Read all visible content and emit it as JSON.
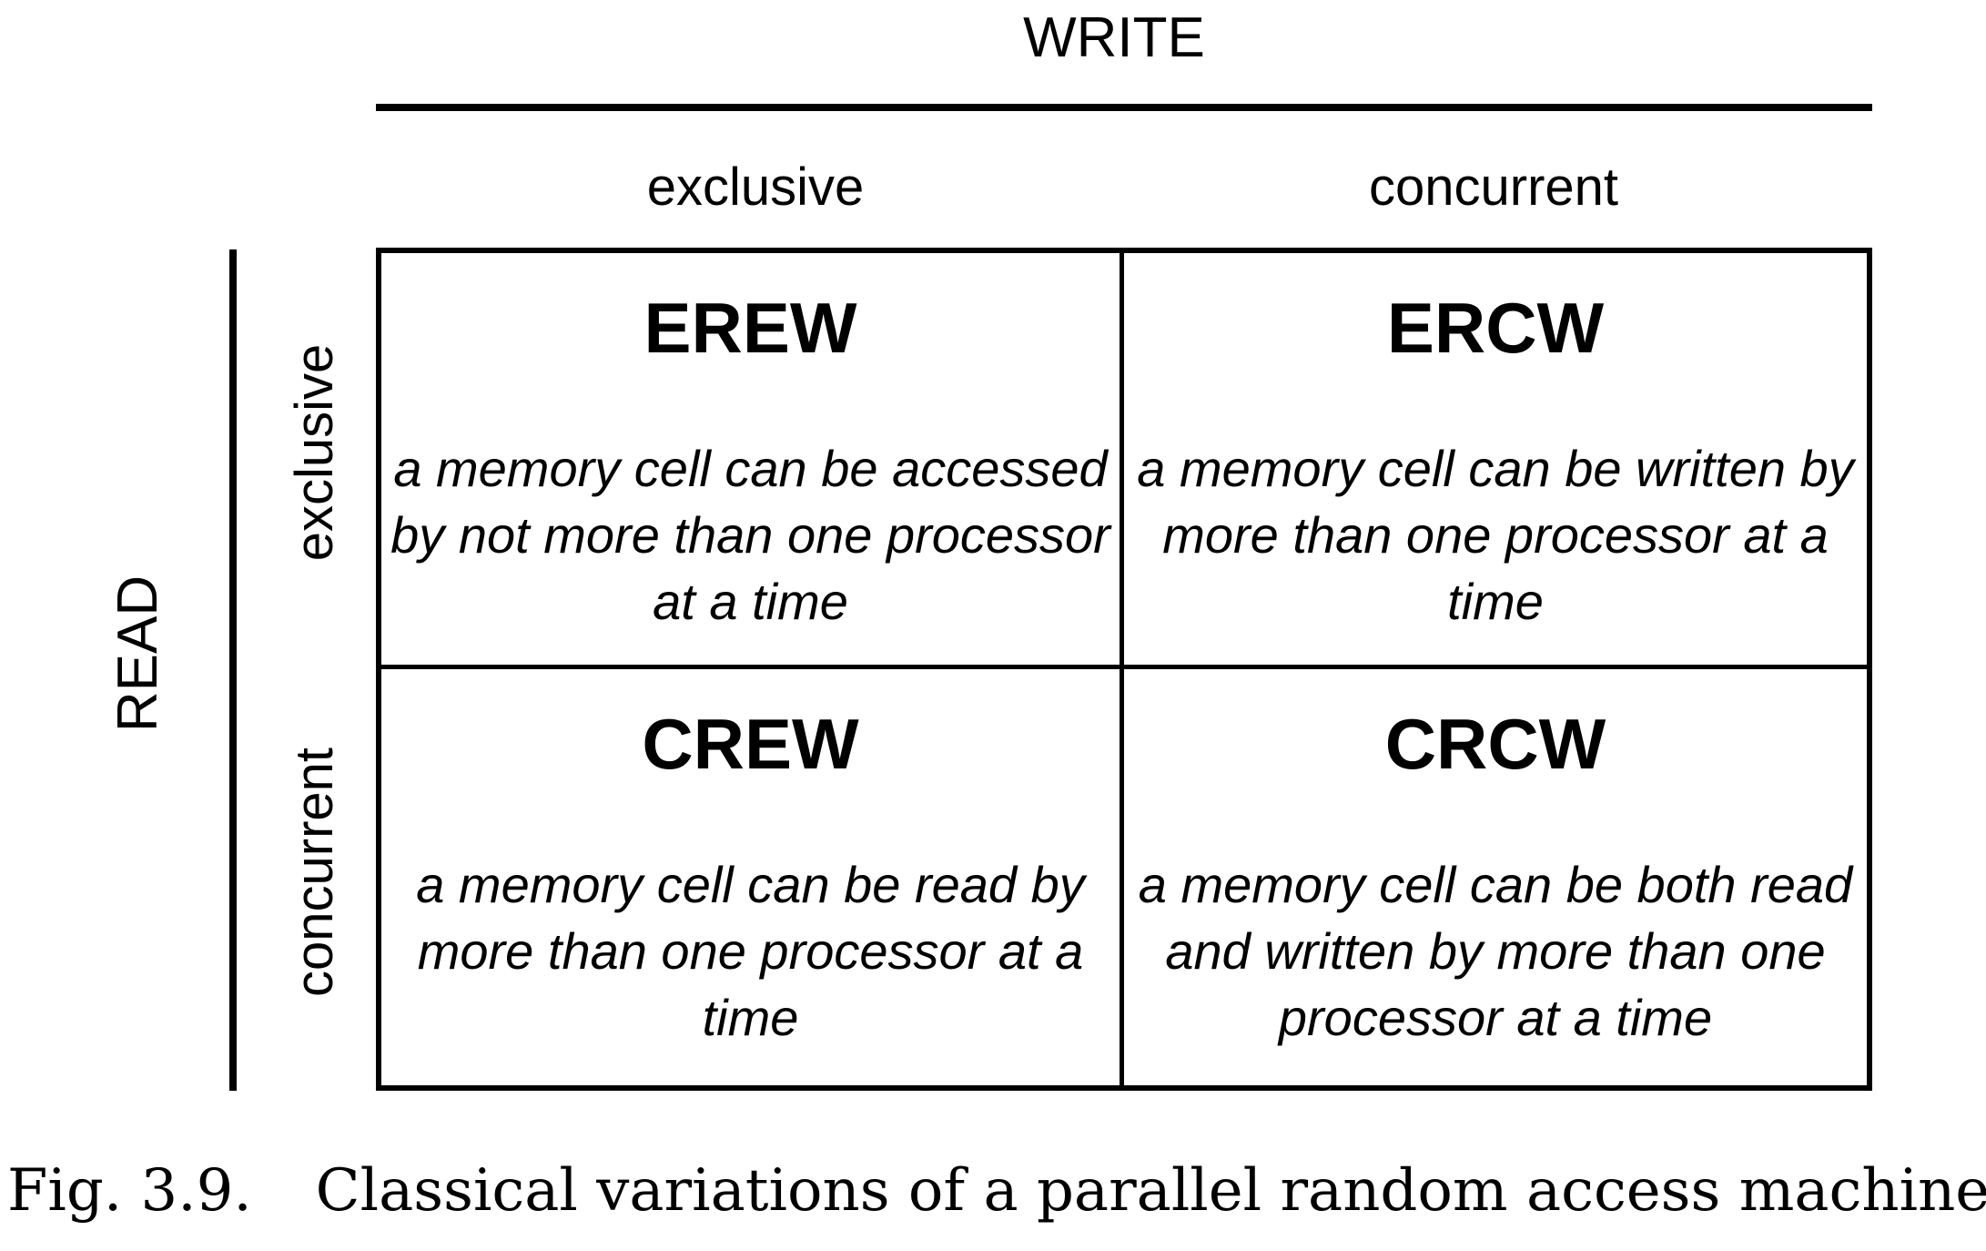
{
  "diagram": {
    "write_axis": {
      "title": "WRITE",
      "columns": [
        "exclusive",
        "concurrent"
      ]
    },
    "read_axis": {
      "title": "READ",
      "rows": [
        "exclusive",
        "concurrent"
      ]
    },
    "cells": [
      {
        "title": "EREW",
        "description": "a memory cell can be accessed by not more than one processor at a time"
      },
      {
        "title": "ERCW",
        "description": "a memory cell can be written by more than one processor at a time"
      },
      {
        "title": "CREW",
        "description": "a memory cell can be read by more than one processor at a time"
      },
      {
        "title": "CRCW",
        "description": "a memory cell can be both read and written by more than one processor at a time"
      }
    ]
  },
  "caption": {
    "label": "Fig. 3.9.",
    "text": "Classical variations of a parallel random access machine."
  }
}
